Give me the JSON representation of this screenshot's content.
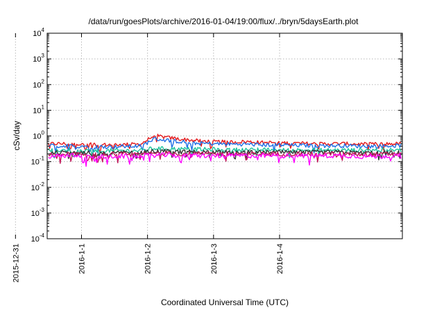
{
  "chart_data": {
    "type": "line",
    "title": "/data/run/goesPlots/archive/2016-01-04/19:00/flux/../bryn/5daysEarth.plot",
    "xlabel": "Coordinated Universal Time (UTC)",
    "ylabel": "cSv/day",
    "yscale": "log",
    "ylim": [
      0.0001,
      10000
    ],
    "xlim": [
      -1.52,
      3.86
    ],
    "x_unit": "days relative to 2016-01-02 00:00 UTC",
    "ytick_exponents": [
      -4,
      -3,
      -2,
      -1,
      0,
      1,
      2,
      3,
      4
    ],
    "xticks": [
      {
        "x": -2,
        "label": "2015-12-31"
      },
      {
        "x": -1,
        "label": "2016-1-1"
      },
      {
        "x": 0,
        "label": "2016-1-2"
      },
      {
        "x": 1,
        "label": "2016-1-3"
      },
      {
        "x": 2,
        "label": "2016-1-4"
      }
    ],
    "grid": true,
    "legend": "none",
    "sample_x": [
      -1.5,
      -1.25,
      -1.0,
      -0.75,
      -0.5,
      -0.25,
      -0.1,
      0.0,
      0.1,
      0.25,
      0.5,
      0.75,
      1.0,
      1.25,
      1.5,
      1.75,
      2.0,
      2.25,
      2.5,
      2.75,
      3.0,
      3.25,
      3.5,
      3.75,
      3.86
    ],
    "series": [
      {
        "color": "#e41a1c",
        "values": [
          0.5,
          0.5,
          0.48,
          0.45,
          0.46,
          0.47,
          0.48,
          0.7,
          1.05,
          0.9,
          0.75,
          0.65,
          0.6,
          0.58,
          0.6,
          0.55,
          0.55,
          0.52,
          0.5,
          0.5,
          0.5,
          0.48,
          0.48,
          0.5,
          0.5
        ]
      },
      {
        "color": "#1f6fe5",
        "values": [
          0.42,
          0.4,
          0.4,
          0.38,
          0.38,
          0.4,
          0.4,
          0.55,
          0.78,
          0.7,
          0.6,
          0.52,
          0.5,
          0.48,
          0.48,
          0.45,
          0.45,
          0.43,
          0.42,
          0.42,
          0.42,
          0.4,
          0.4,
          0.42,
          0.42
        ]
      },
      {
        "color": "#1fc49c",
        "values": [
          0.28,
          0.28,
          0.27,
          0.26,
          0.27,
          0.27,
          0.27,
          0.3,
          0.33,
          0.32,
          0.31,
          0.3,
          0.3,
          0.29,
          0.29,
          0.29,
          0.28,
          0.28,
          0.28,
          0.28,
          0.28,
          0.28,
          0.28,
          0.28,
          0.28
        ]
      },
      {
        "color": "#333333",
        "values": [
          0.23,
          0.23,
          0.22,
          0.22,
          0.22,
          0.22,
          0.22,
          0.24,
          0.25,
          0.25,
          0.24,
          0.24,
          0.24,
          0.23,
          0.23,
          0.23,
          0.23,
          0.23,
          0.23,
          0.23,
          0.23,
          0.22,
          0.22,
          0.23,
          0.23
        ]
      },
      {
        "color": "#c2185b",
        "values": [
          0.2,
          0.2,
          0.19,
          0.18,
          0.19,
          0.19,
          0.19,
          0.2,
          0.21,
          0.21,
          0.2,
          0.2,
          0.2,
          0.2,
          0.2,
          0.2,
          0.2,
          0.2,
          0.2,
          0.2,
          0.2,
          0.19,
          0.19,
          0.2,
          0.2
        ]
      },
      {
        "color": "#ff00ff",
        "values": [
          0.17,
          0.17,
          0.16,
          0.15,
          0.16,
          0.16,
          0.16,
          0.17,
          0.18,
          0.18,
          0.17,
          0.17,
          0.17,
          0.17,
          0.17,
          0.17,
          0.17,
          0.17,
          0.17,
          0.17,
          0.17,
          0.16,
          0.16,
          0.17,
          0.17
        ]
      }
    ]
  }
}
